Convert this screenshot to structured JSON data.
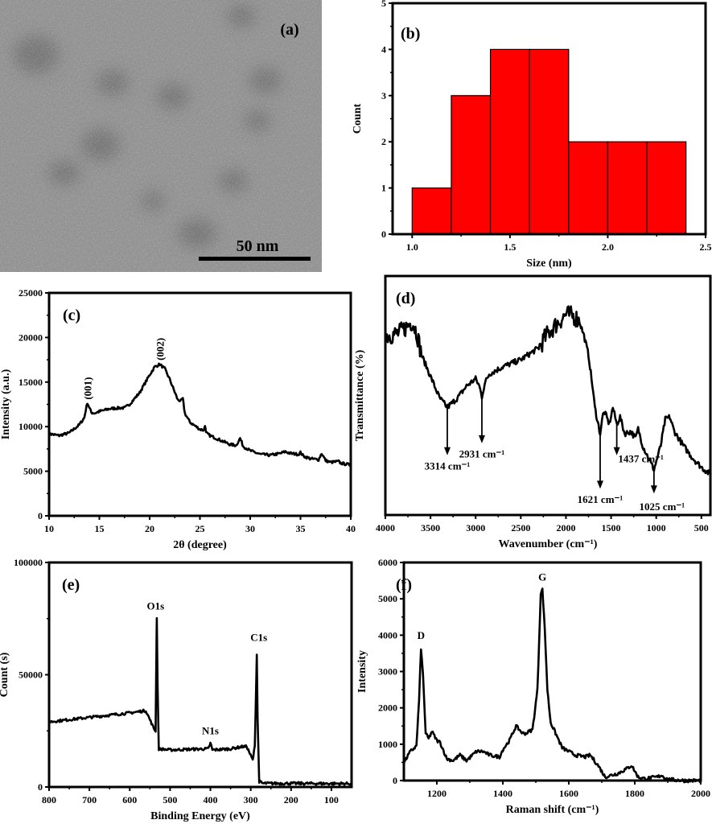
{
  "panel_a": {
    "panel_label": "(a)",
    "scale_bar_label": "50 nm"
  },
  "chart_data": [
    {
      "id": "b",
      "type": "bar",
      "panel_label": "(b)",
      "xlabel": "Size (nm)",
      "ylabel": "Count",
      "xlim": [
        0.9,
        2.5
      ],
      "ylim": [
        0,
        5
      ],
      "xticks": [
        1.0,
        1.5,
        2.0,
        2.5
      ],
      "xtick_labels": [
        "1.0",
        "1.5",
        "2.0",
        "2.5"
      ],
      "yticks": [
        0,
        1,
        2,
        3,
        4,
        5
      ],
      "ytick_labels": [
        "0",
        "1",
        "2",
        "3",
        "4",
        "5"
      ],
      "bins": [
        [
          1.0,
          1.2
        ],
        [
          1.2,
          1.4
        ],
        [
          1.4,
          1.6
        ],
        [
          1.6,
          1.8
        ],
        [
          1.8,
          2.0
        ],
        [
          2.0,
          2.2
        ],
        [
          2.2,
          2.4
        ]
      ],
      "values": [
        1,
        3,
        4,
        4,
        2,
        2,
        2
      ],
      "bar_color": "#ff0000"
    },
    {
      "id": "c",
      "type": "line",
      "panel_label": "(c)",
      "xlabel": "2θ (degree)",
      "ylabel": "Intensity (a.u.)",
      "xlim": [
        10,
        40
      ],
      "ylim": [
        0,
        25000
      ],
      "xticks": [
        10,
        15,
        20,
        25,
        30,
        35,
        40
      ],
      "xtick_labels": [
        "10",
        "15",
        "20",
        "25",
        "30",
        "35",
        "40"
      ],
      "yticks": [
        0,
        5000,
        10000,
        15000,
        20000,
        25000
      ],
      "ytick_labels": [
        "0",
        "5000",
        "10000",
        "15000",
        "20000",
        "25000"
      ],
      "points": [
        [
          10,
          9200
        ],
        [
          11,
          9000
        ],
        [
          12,
          9300
        ],
        [
          13,
          10200
        ],
        [
          13.5,
          11000
        ],
        [
          13.8,
          12700
        ],
        [
          14.2,
          11600
        ],
        [
          14.5,
          11500
        ],
        [
          15,
          11700
        ],
        [
          16,
          12000
        ],
        [
          17,
          12100
        ],
        [
          17.5,
          12100
        ],
        [
          18,
          12500
        ],
        [
          19,
          13800
        ],
        [
          20,
          15800
        ],
        [
          20.5,
          16700
        ],
        [
          21,
          17000
        ],
        [
          21.5,
          16500
        ],
        [
          22,
          15300
        ],
        [
          22.8,
          13000
        ],
        [
          23.1,
          12900
        ],
        [
          23.3,
          13100
        ],
        [
          23.5,
          11500
        ],
        [
          24,
          10500
        ],
        [
          25,
          9700
        ],
        [
          25.4,
          9600
        ],
        [
          25.5,
          10200
        ],
        [
          25.6,
          9300
        ],
        [
          26,
          9000
        ],
        [
          27,
          8500
        ],
        [
          28,
          8000
        ],
        [
          28.6,
          7900
        ],
        [
          29,
          8700
        ],
        [
          29.3,
          7800
        ],
        [
          30,
          7300
        ],
        [
          31,
          6900
        ],
        [
          32,
          6800
        ],
        [
          33,
          7000
        ],
        [
          33.5,
          7200
        ],
        [
          34,
          7000
        ],
        [
          34.8,
          6900
        ],
        [
          35,
          7100
        ],
        [
          35.3,
          6700
        ],
        [
          36,
          6400
        ],
        [
          36.8,
          6300
        ],
        [
          37.1,
          7000
        ],
        [
          37.5,
          6200
        ],
        [
          38,
          6000
        ],
        [
          38.8,
          6100
        ],
        [
          39,
          5900
        ],
        [
          40,
          5700
        ]
      ],
      "annotations": [
        {
          "text": "(001)",
          "x": 13.8,
          "y": 14300,
          "rotate": true
        },
        {
          "text": "(002)",
          "x": 21.0,
          "y": 18700,
          "rotate": true
        }
      ]
    },
    {
      "id": "d",
      "type": "line",
      "panel_label": "(d)",
      "xlabel": "Wavenumber (cm⁻¹)",
      "ylabel": "Transmittance (%)",
      "xlim": [
        4000,
        400
      ],
      "ylim": [
        0,
        100
      ],
      "xticks": [
        4000,
        3500,
        3000,
        2500,
        2000,
        1500,
        1000,
        500
      ],
      "xtick_labels": [
        "4000",
        "3500",
        "3000",
        "2500",
        "2000",
        "1500",
        "1000",
        "500"
      ],
      "yticks": [],
      "ytick_labels": [],
      "points": [
        [
          4000,
          75
        ],
        [
          3850,
          76
        ],
        [
          3700,
          81
        ],
        [
          3650,
          76
        ],
        [
          3600,
          67
        ],
        [
          3500,
          58
        ],
        [
          3400,
          49
        ],
        [
          3314,
          45
        ],
        [
          3200,
          49
        ],
        [
          3100,
          54
        ],
        [
          3000,
          57
        ],
        [
          2960,
          54
        ],
        [
          2931,
          49.5
        ],
        [
          2900,
          55
        ],
        [
          2850,
          59
        ],
        [
          2700,
          62
        ],
        [
          2500,
          65
        ],
        [
          2300,
          70
        ],
        [
          2200,
          76
        ],
        [
          2100,
          80
        ],
        [
          2000,
          84
        ],
        [
          1900,
          83
        ],
        [
          1850,
          81
        ],
        [
          1800,
          75
        ],
        [
          1750,
          67
        ],
        [
          1700,
          52
        ],
        [
          1680,
          45
        ],
        [
          1621,
          34
        ],
        [
          1590,
          42
        ],
        [
          1570,
          43
        ],
        [
          1520,
          38
        ],
        [
          1480,
          45
        ],
        [
          1437,
          38
        ],
        [
          1400,
          41
        ],
        [
          1350,
          34
        ],
        [
          1280,
          35
        ],
        [
          1230,
          32
        ],
        [
          1200,
          36
        ],
        [
          1150,
          29
        ],
        [
          1100,
          25
        ],
        [
          1025,
          19
        ],
        [
          950,
          29
        ],
        [
          900,
          40
        ],
        [
          850,
          41
        ],
        [
          800,
          35
        ],
        [
          700,
          29
        ],
        [
          600,
          24
        ],
        [
          500,
          20
        ],
        [
          400,
          17
        ]
      ],
      "arrows": [
        {
          "text": "3314 cm⁻¹",
          "x": 3314,
          "from": 45,
          "to": 25,
          "label_y": 19,
          "label_dx": 0
        },
        {
          "text": "2931 cm⁻¹",
          "x": 2931,
          "from": 49,
          "to": 30,
          "label_y": 24,
          "label_dx": 0
        },
        {
          "text": "1621 cm⁻¹",
          "x": 1621,
          "from": 34,
          "to": 11,
          "label_y": 5,
          "label_dx": 0
        },
        {
          "text": "1437 cm⁻¹",
          "x": 1437,
          "from": 38,
          "to": 25,
          "label_y": 22,
          "label_dx": 30
        },
        {
          "text": "1025 cm⁻¹",
          "x": 1025,
          "from": 19,
          "to": 9,
          "label_y": 2,
          "label_dx": 10
        }
      ]
    },
    {
      "id": "e",
      "type": "line",
      "panel_label": "(e)",
      "xlabel": "Binding Energy (eV)",
      "ylabel": "Count (s)",
      "xlim": [
        800,
        50
      ],
      "ylim": [
        0,
        100000
      ],
      "xticks": [
        800,
        700,
        600,
        500,
        400,
        300,
        200,
        100
      ],
      "xtick_labels": [
        "800",
        "700",
        "600",
        "500",
        "400",
        "300",
        "200",
        "100"
      ],
      "yticks": [
        0,
        50000,
        100000
      ],
      "ytick_labels": [
        "0",
        "50000",
        "100000"
      ],
      "points": [
        [
          800,
          29000
        ],
        [
          700,
          31000
        ],
        [
          600,
          33000
        ],
        [
          560,
          34000
        ],
        [
          550,
          30000
        ],
        [
          540,
          26000
        ],
        [
          536,
          25000
        ],
        [
          534,
          60000
        ],
        [
          533,
          75000
        ],
        [
          531,
          45000
        ],
        [
          528,
          17000
        ],
        [
          500,
          16500
        ],
        [
          450,
          16800
        ],
        [
          405,
          17000
        ],
        [
          400,
          19500
        ],
        [
          395,
          16500
        ],
        [
          350,
          17000
        ],
        [
          320,
          18000
        ],
        [
          310,
          18000
        ],
        [
          300,
          14000
        ],
        [
          295,
          12000
        ],
        [
          290,
          18000
        ],
        [
          286,
          50000
        ],
        [
          285,
          59000
        ],
        [
          283,
          30000
        ],
        [
          279,
          2500
        ],
        [
          270,
          1600
        ],
        [
          200,
          1600
        ],
        [
          100,
          1500
        ],
        [
          50,
          1500
        ]
      ],
      "annotations": [
        {
          "text": "O1s",
          "x": 536,
          "y": 79000
        },
        {
          "text": "N1s",
          "x": 400,
          "y": 23500
        },
        {
          "text": "C1s",
          "x": 280,
          "y": 65000
        }
      ]
    },
    {
      "id": "f",
      "type": "line",
      "panel_label": "(f)",
      "xlabel": "Raman shift (cm⁻¹)",
      "ylabel": "Intensity",
      "xlim": [
        1100,
        2000
      ],
      "ylim": [
        0,
        6000
      ],
      "xticks": [
        1200,
        1400,
        1600,
        1800,
        2000
      ],
      "xtick_labels": [
        "1200",
        "1400",
        "1600",
        "1800",
        "2000"
      ],
      "yticks": [
        0,
        1000,
        2000,
        3000,
        4000,
        5000,
        6000
      ],
      "ytick_labels": [
        "0",
        "1000",
        "2000",
        "3000",
        "4000",
        "5000",
        "6000"
      ],
      "points": [
        [
          1100,
          500
        ],
        [
          1120,
          800
        ],
        [
          1138,
          950
        ],
        [
          1146,
          2200
        ],
        [
          1152,
          3650
        ],
        [
          1158,
          2900
        ],
        [
          1166,
          1300
        ],
        [
          1175,
          1150
        ],
        [
          1185,
          1350
        ],
        [
          1200,
          1100
        ],
        [
          1210,
          1050
        ],
        [
          1230,
          600
        ],
        [
          1250,
          550
        ],
        [
          1270,
          700
        ],
        [
          1290,
          550
        ],
        [
          1320,
          800
        ],
        [
          1340,
          800
        ],
        [
          1360,
          700
        ],
        [
          1390,
          650
        ],
        [
          1400,
          850
        ],
        [
          1420,
          1100
        ],
        [
          1440,
          1500
        ],
        [
          1460,
          1300
        ],
        [
          1470,
          1300
        ],
        [
          1490,
          1400
        ],
        [
          1505,
          2500
        ],
        [
          1515,
          5150
        ],
        [
          1520,
          5250
        ],
        [
          1527,
          4200
        ],
        [
          1535,
          2500
        ],
        [
          1545,
          1600
        ],
        [
          1560,
          1300
        ],
        [
          1580,
          900
        ],
        [
          1600,
          800
        ],
        [
          1620,
          700
        ],
        [
          1650,
          650
        ],
        [
          1665,
          700
        ],
        [
          1690,
          400
        ],
        [
          1710,
          100
        ],
        [
          1750,
          200
        ],
        [
          1780,
          350
        ],
        [
          1790,
          420
        ],
        [
          1810,
          100
        ],
        [
          1830,
          50
        ],
        [
          1870,
          100
        ],
        [
          1880,
          150
        ],
        [
          1900,
          30
        ],
        [
          1950,
          0
        ],
        [
          2000,
          0
        ]
      ],
      "annotations": [
        {
          "text": "D",
          "x": 1152,
          "y": 3900
        },
        {
          "text": "G",
          "x": 1520,
          "y": 5500
        }
      ]
    }
  ]
}
